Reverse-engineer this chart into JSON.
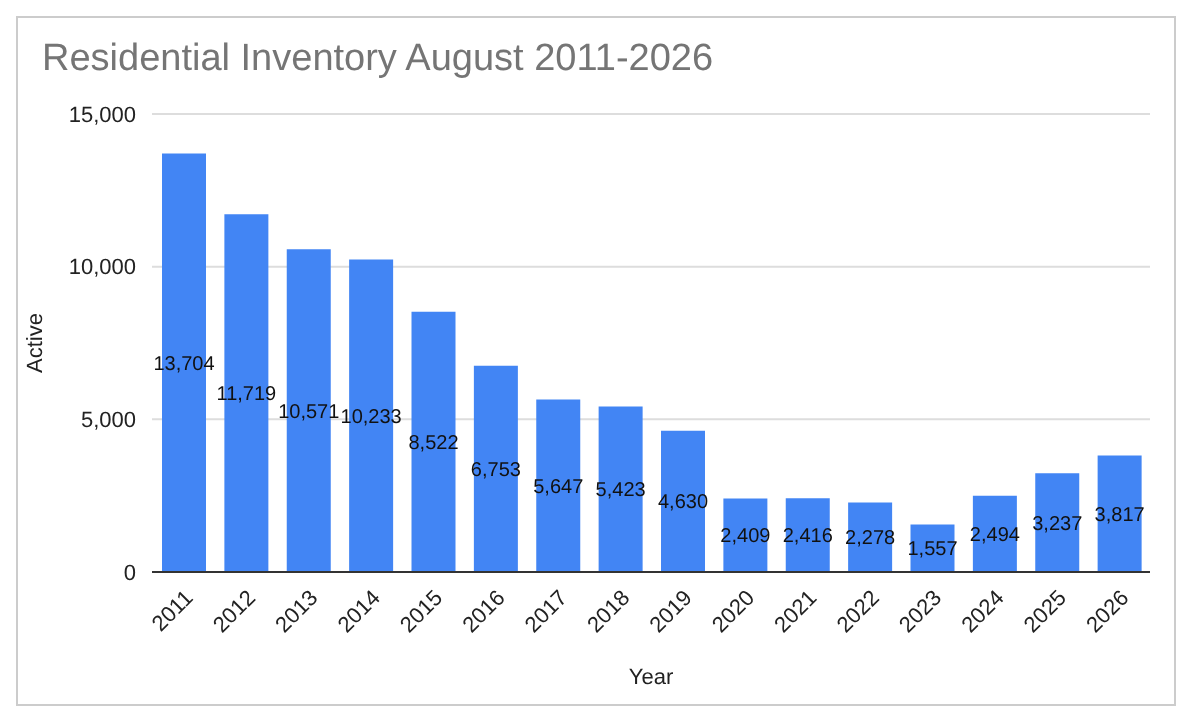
{
  "chart_data": {
    "type": "bar",
    "title": "Residential Inventory August 2011-2026",
    "xlabel": "Year",
    "ylabel": "Active",
    "categories": [
      "2011",
      "2012",
      "2013",
      "2014",
      "2015",
      "2016",
      "2017",
      "2018",
      "2019",
      "2020",
      "2021",
      "2022",
      "2023",
      "2024",
      "2025",
      "2026"
    ],
    "values": [
      13704,
      11719,
      10571,
      10233,
      8522,
      6753,
      5647,
      5423,
      4630,
      2409,
      2416,
      2278,
      1557,
      2494,
      3237,
      3817
    ],
    "color": "#4285f4",
    "ylim": [
      0,
      15000
    ],
    "yticks": [
      {
        "value": 0,
        "label": "0"
      },
      {
        "value": 5000,
        "label": "5,000"
      },
      {
        "value": 10000,
        "label": "10,000"
      },
      {
        "value": 15000,
        "label": "15,000"
      }
    ],
    "grid": "y",
    "value_labels": [
      "13,704",
      "11,719",
      "10,571",
      "10,233",
      "8,522",
      "6,753",
      "5,647",
      "5,423",
      "4,630",
      "2,409",
      "2,416",
      "2,278",
      "1,557",
      "2,494",
      "3,237",
      "3,817"
    ]
  }
}
